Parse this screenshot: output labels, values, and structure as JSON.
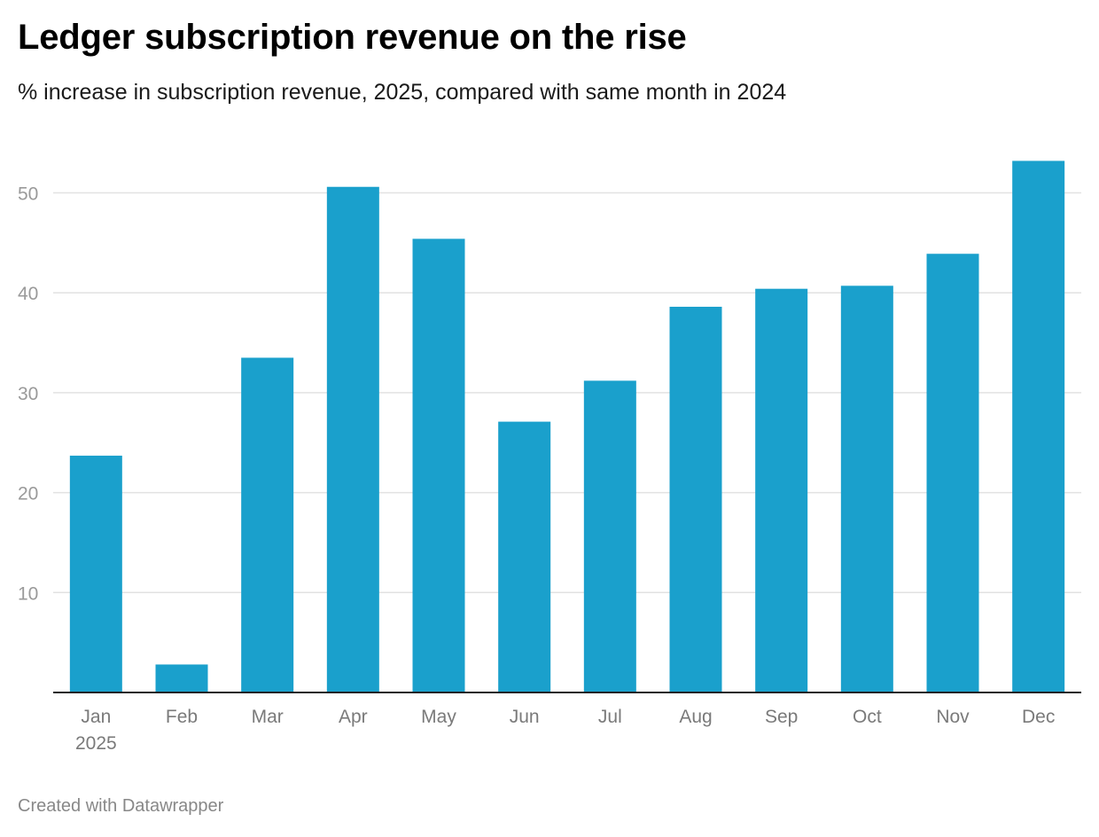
{
  "header": {
    "title": "Ledger subscription revenue on the rise",
    "subtitle": "% increase in subscription revenue, 2025, compared with same month in 2024"
  },
  "footer": {
    "credit": "Created with Datawrapper"
  },
  "colors": {
    "bar": "#1aa0cc",
    "grid": "#e2e2e2",
    "axis": "#222222"
  },
  "chart_data": {
    "type": "bar",
    "title": "Ledger subscription revenue on the rise",
    "subtitle": "% increase in subscription revenue, 2025, compared with same month in 2024",
    "xlabel": "",
    "ylabel": "",
    "categories": [
      "Jan",
      "Feb",
      "Mar",
      "Apr",
      "May",
      "Jun",
      "Jul",
      "Aug",
      "Sep",
      "Oct",
      "Nov",
      "Dec"
    ],
    "year_label": "2025",
    "values": [
      23.7,
      2.8,
      33.5,
      50.6,
      45.4,
      27.1,
      31.2,
      38.6,
      40.4,
      40.7,
      43.9,
      53.2
    ],
    "ylim": [
      0,
      55
    ],
    "yticks": [
      10,
      20,
      30,
      40,
      50
    ],
    "grid": true
  }
}
